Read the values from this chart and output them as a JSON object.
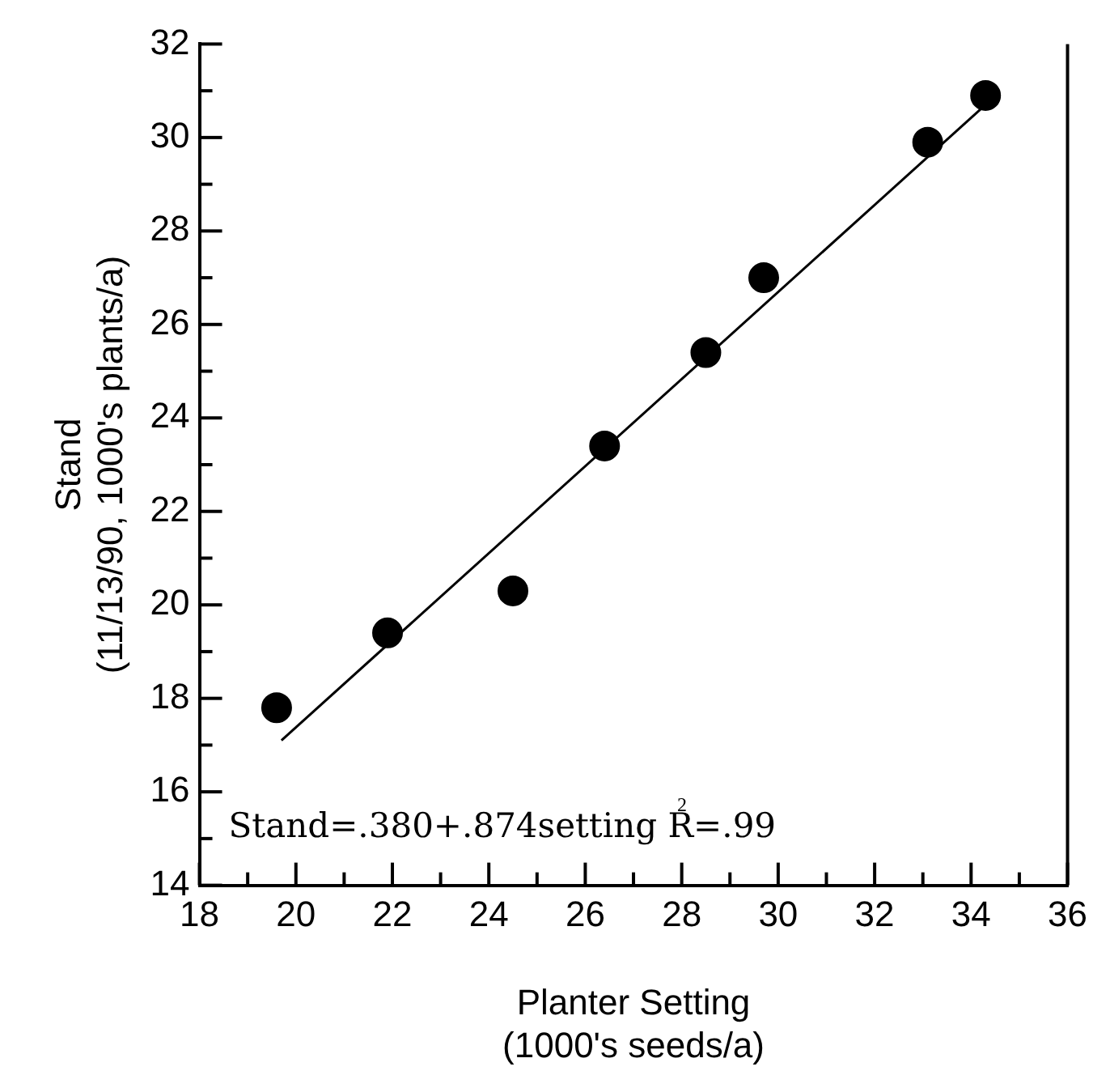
{
  "chart_data": {
    "type": "scatter",
    "xlabel": "Planter Setting\n(1000's seeds/a)",
    "ylabel": "Stand\n(11/13/90, 1000's plants/a)",
    "xlim": [
      18,
      36
    ],
    "xticks": [
      18,
      {
        "value": 19,
        "label": null
      },
      20,
      {
        "value": 21,
        "label": null
      },
      22,
      {
        "value": 23,
        "label": null
      },
      24,
      {
        "value": 25,
        "label": null
      },
      26,
      {
        "value": 27,
        "label": null
      },
      28,
      {
        "value": 29,
        "label": null
      },
      30,
      {
        "value": 31,
        "label": null
      },
      32,
      {
        "value": 33,
        "label": null
      },
      34,
      {
        "value": 35,
        "label": null
      },
      36
    ],
    "ylim": [
      14,
      32
    ],
    "yticks": [
      14,
      {
        "value": 15,
        "label": null
      },
      16,
      {
        "value": 17,
        "label": null
      },
      18,
      {
        "value": 19,
        "label": null
      },
      20,
      {
        "value": 21,
        "label": null
      },
      22,
      {
        "value": 23,
        "label": null
      },
      24,
      {
        "value": 25,
        "label": null
      },
      26,
      {
        "value": 27,
        "label": null
      },
      28,
      {
        "value": 29,
        "label": null
      },
      30,
      {
        "value": 31,
        "label": null
      },
      32
    ],
    "legend": false,
    "series": [
      {
        "marker": "circle",
        "color": "#000000",
        "x": [
          19.6,
          21.9,
          24.5,
          26.4,
          28.5,
          29.7,
          33.1,
          34.3
        ],
        "values": [
          17.8,
          19.4,
          20.3,
          23.4,
          25.4,
          27.0,
          29.9,
          30.9
        ]
      },
      {
        "type": "line",
        "color": "#000000",
        "x": [
          19.7,
          34.3
        ],
        "values": [
          17.1,
          30.7
        ]
      }
    ],
    "annotations": [
      "Stand=.380+.874setting R$^{2}$=.99"
    ]
  }
}
